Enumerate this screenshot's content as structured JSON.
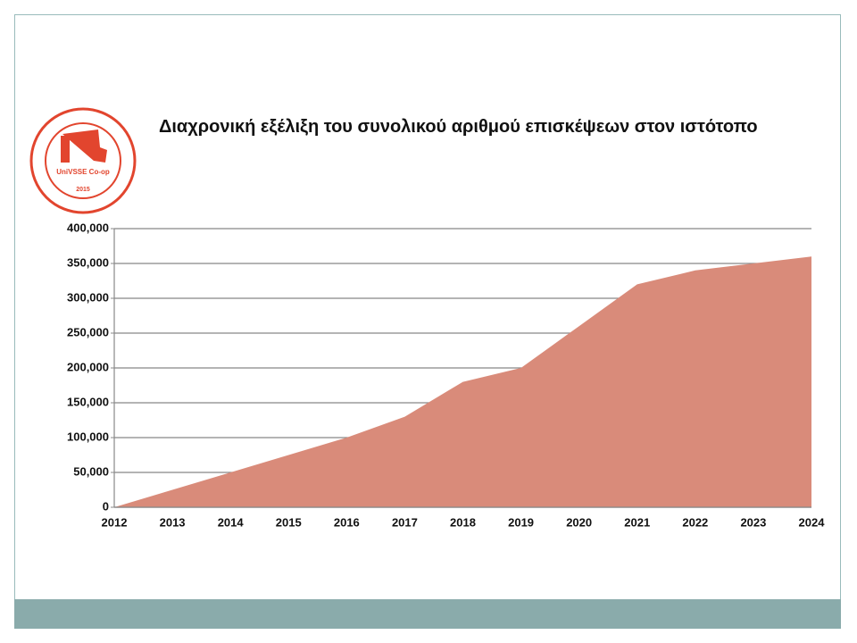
{
  "logo": {
    "name": "UniVSSE Co-op",
    "year": "2015"
  },
  "chart_data": {
    "type": "area",
    "title": "Διαχρονική εξέλιξη του συνολικού αριθμού επισκέψεων στον ιστότοπο",
    "x": [
      2012,
      2013,
      2014,
      2015,
      2016,
      2017,
      2018,
      2019,
      2020,
      2021,
      2022,
      2023,
      2024
    ],
    "values": [
      0,
      25000,
      50000,
      75000,
      100000,
      130000,
      180000,
      200000,
      260000,
      320000,
      340000,
      350000,
      360000
    ],
    "color": "#d98b7a",
    "xlim": [
      2012,
      2024
    ],
    "xticks": [
      2012,
      2013,
      2014,
      2015,
      2016,
      2017,
      2018,
      2019,
      2020,
      2021,
      2022,
      2023,
      2024
    ],
    "ylim": [
      0,
      400000
    ],
    "yticks": [
      0,
      {
        "value": 50000,
        "label": "50,000"
      },
      {
        "value": 100000,
        "label": "100,000"
      },
      {
        "value": 150000,
        "label": "150,000"
      },
      {
        "value": 200000,
        "label": "200,000"
      },
      {
        "value": 250000,
        "label": "250,000"
      },
      {
        "value": 300000,
        "label": "300,000"
      },
      {
        "value": 350000,
        "label": "350,000"
      },
      {
        "value": 400000,
        "label": "400,000"
      }
    ],
    "grid": true
  }
}
